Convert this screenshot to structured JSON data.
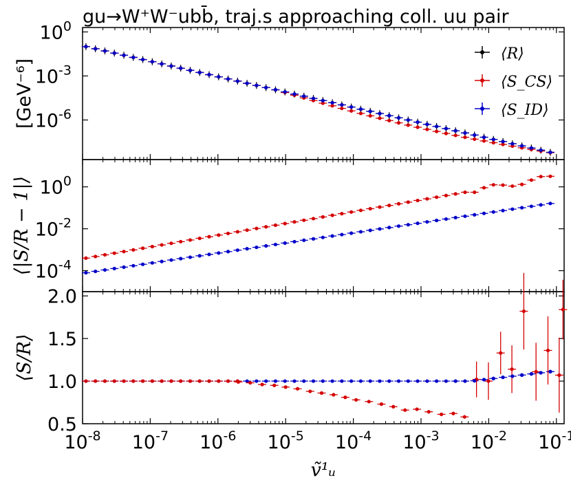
{
  "chart_data": [
    {
      "panel": "top",
      "type": "scatter",
      "title": "gu→W⁺W⁻ubb̄, traj.s approaching coll. uu pair",
      "ylabel": "[GeV⁻⁶]",
      "yscale": "log",
      "ylim": [
        2e-09,
        2
      ],
      "yticks": [
        1,
        0.001,
        1e-06
      ],
      "yticklabels": [
        {
          "base": "10",
          "exp": "0"
        },
        {
          "base": "10",
          "exp": "-3"
        },
        {
          "base": "10",
          "exp": "-6"
        }
      ],
      "xscale": "log",
      "xlim": [
        1e-08,
        0.13
      ],
      "legend": {
        "position": "top-right",
        "entries": [
          "⟨R⟩",
          "⟨S_CS⟩",
          "⟨S_ID⟩"
        ]
      },
      "series": [
        {
          "name": "⟨R⟩",
          "color": "#000000",
          "log10_y_start": -1.0,
          "log10_y_end": -8.3
        },
        {
          "name": "⟨S_CS⟩",
          "color": "#d40000",
          "log10_y_start": -1.0,
          "log10_y_end": -8.3,
          "note_dip_max": 0.35
        },
        {
          "name": "⟨S_ID⟩",
          "color": "#0000c8",
          "log10_y_start": -1.0,
          "log10_y_end": -8.3
        }
      ]
    },
    {
      "panel": "middle",
      "type": "scatter",
      "ylabel": "⟨|S/R − 1|⟩",
      "yscale": "log",
      "ylim": [
        1e-05,
        20
      ],
      "yticks": [
        1,
        0.01,
        0.0001
      ],
      "yticklabels": [
        {
          "base": "10",
          "exp": "0"
        },
        {
          "base": "10",
          "exp": "-2"
        },
        {
          "base": "10",
          "exp": "-4"
        }
      ],
      "xscale": "log",
      "xlim": [
        1e-08,
        0.13
      ],
      "series": [
        {
          "name": "⟨S_CS⟩",
          "color": "#d40000",
          "log10_start": -3.4,
          "log10_end": 0.5
        },
        {
          "name": "⟨S_ID⟩",
          "color": "#0000c8",
          "log10_start": -4.1,
          "log10_end": -0.75
        }
      ]
    },
    {
      "panel": "bottom",
      "type": "scatter",
      "ylabel": "⟨S/R⟩",
      "ylim": [
        0.5,
        2.05
      ],
      "yticks": [
        0.5,
        1.0,
        1.5,
        2.0
      ],
      "yticklabels": [
        "0.5",
        "1.0",
        "1.5",
        "2.0"
      ],
      "xscale": "log",
      "xlim": [
        1e-08,
        0.13
      ],
      "xlabel": "ṽ¹ᵤ",
      "xticks": [
        1e-08,
        1e-07,
        1e-06,
        1e-05,
        0.0001,
        0.001,
        0.01,
        0.1
      ],
      "xticklabels": [
        {
          "base": "10",
          "exp": "-8"
        },
        {
          "base": "10",
          "exp": "-7"
        },
        {
          "base": "10",
          "exp": "-6"
        },
        {
          "base": "10",
          "exp": "-5"
        },
        {
          "base": "10",
          "exp": "-4"
        },
        {
          "base": "10",
          "exp": "-3"
        },
        {
          "base": "10",
          "exp": "-2"
        },
        {
          "base": "10",
          "exp": "-1"
        }
      ],
      "series": [
        {
          "name": "⟨S_CS⟩",
          "color": "#d40000",
          "points": [
            {
              "x": 2e-06,
              "y": 0.99
            },
            {
              "x": 3e-06,
              "y": 0.98
            },
            {
              "x": 4.5e-06,
              "y": 0.96
            },
            {
              "x": 6.8e-06,
              "y": 0.95
            },
            {
              "x": 1e-05,
              "y": 0.93
            },
            {
              "x": 1.5e-05,
              "y": 0.91
            },
            {
              "x": 2.3e-05,
              "y": 0.88
            },
            {
              "x": 3.4e-05,
              "y": 0.86
            },
            {
              "x": 5.1e-05,
              "y": 0.84
            },
            {
              "x": 7.6e-05,
              "y": 0.81
            },
            {
              "x": 0.00011,
              "y": 0.78
            },
            {
              "x": 0.00017,
              "y": 0.76
            },
            {
              "x": 0.00026,
              "y": 0.73
            },
            {
              "x": 0.00039,
              "y": 0.7
            },
            {
              "x": 0.00058,
              "y": 0.66
            },
            {
              "x": 0.00087,
              "y": 0.67
            },
            {
              "x": 0.0013,
              "y": 0.64
            },
            {
              "x": 0.002,
              "y": 0.61
            },
            {
              "x": 0.003,
              "y": 0.62
            },
            {
              "x": 0.0044,
              "y": 0.58
            },
            {
              "x": 0.0066,
              "y": 1.02,
              "err": 0.21
            },
            {
              "x": 0.0099,
              "y": 1.0,
              "err": 0.22
            },
            {
              "x": 0.015,
              "y": 1.33,
              "err": 0.25
            },
            {
              "x": 0.022,
              "y": 1.14,
              "err": 0.28
            },
            {
              "x": 0.033,
              "y": 1.82,
              "err": 0.45
            },
            {
              "x": 0.05,
              "y": 1.11,
              "err": 0.34
            },
            {
              "x": 0.075,
              "y": 1.36,
              "err": 0.4
            },
            {
              "x": 0.11,
              "y": 1.07,
              "err": 0.44
            },
            {
              "x": 0.125,
              "y": 1.84,
              "err": 0.35
            }
          ]
        },
        {
          "name": "⟨S_ID⟩",
          "color": "#0000c8",
          "note": "flat at 1.0, rising to 1.12 near x=0.1"
        }
      ]
    }
  ]
}
